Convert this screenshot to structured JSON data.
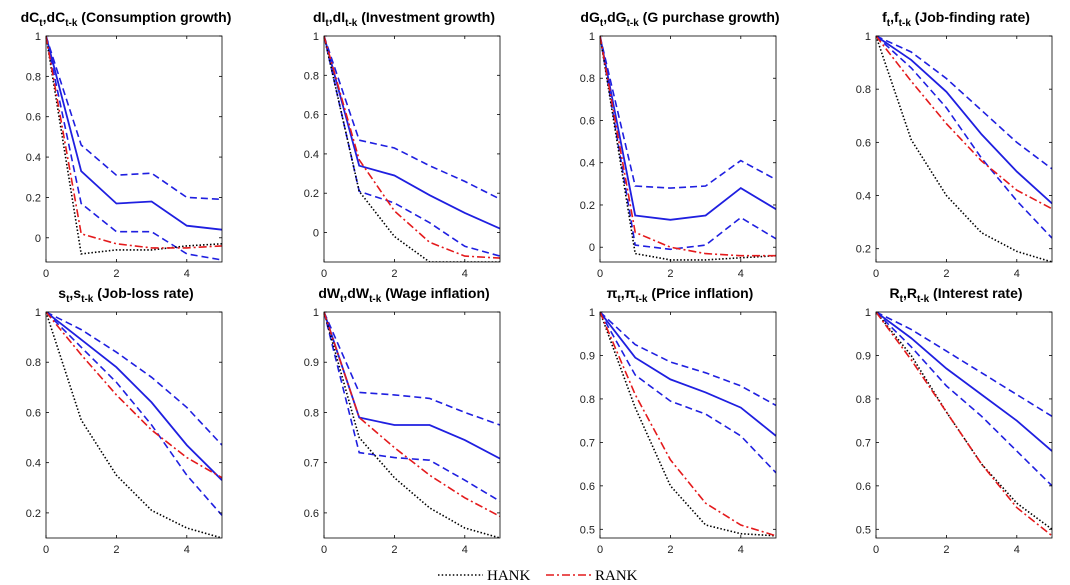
{
  "legend": [
    {
      "name": "HANK",
      "color": "#000000",
      "dash": "dot"
    },
    {
      "name": "RANK",
      "color": "#e41a1c",
      "dash": "dashdot"
    }
  ],
  "colors": {
    "band": "#1f1fe0",
    "hank": "#000000",
    "rank": "#e41a1c"
  },
  "chart_data": [
    {
      "type": "line",
      "title_main": "dC",
      "title_sub1": "t",
      "title_mid": ",dC",
      "title_sub2": "t-k",
      "title_rest": " (Consumption growth)",
      "x": [
        0,
        1,
        2,
        3,
        4,
        5
      ],
      "xlim": [
        0,
        5
      ],
      "ylim": [
        -0.12,
        1
      ],
      "xticks": [
        0,
        2,
        4
      ],
      "yticks": [
        0,
        0.2,
        0.4,
        0.6,
        0.8,
        1
      ],
      "series": [
        {
          "role": "mid",
          "values": [
            1,
            0.33,
            0.17,
            0.18,
            0.06,
            0.04
          ]
        },
        {
          "role": "upper",
          "values": [
            1,
            0.46,
            0.31,
            0.32,
            0.2,
            0.19
          ]
        },
        {
          "role": "lower",
          "values": [
            1,
            0.17,
            0.03,
            0.03,
            -0.08,
            -0.11
          ]
        },
        {
          "name": "HANK",
          "values": [
            1,
            -0.08,
            -0.06,
            -0.06,
            -0.04,
            -0.03
          ]
        },
        {
          "name": "RANK",
          "values": [
            1,
            0.02,
            -0.03,
            -0.05,
            -0.05,
            -0.04
          ]
        }
      ]
    },
    {
      "type": "line",
      "title_main": "dI",
      "title_sub1": "t",
      "title_mid": ",dI",
      "title_sub2": "t-k",
      "title_rest": " (Investment growth)",
      "x": [
        0,
        1,
        2,
        3,
        4,
        5
      ],
      "xlim": [
        0,
        5
      ],
      "ylim": [
        -0.15,
        1
      ],
      "xticks": [
        0,
        2,
        4
      ],
      "yticks": [
        0,
        0.2,
        0.4,
        0.6,
        0.8,
        1
      ],
      "series": [
        {
          "role": "mid",
          "values": [
            1,
            0.34,
            0.29,
            0.19,
            0.1,
            0.02
          ]
        },
        {
          "role": "upper",
          "values": [
            1,
            0.47,
            0.43,
            0.34,
            0.26,
            0.17
          ]
        },
        {
          "role": "lower",
          "values": [
            1,
            0.21,
            0.15,
            0.05,
            -0.07,
            -0.12
          ]
        },
        {
          "name": "HANK",
          "values": [
            1,
            0.21,
            -0.02,
            -0.15,
            -0.15,
            -0.15
          ]
        },
        {
          "name": "RANK",
          "values": [
            1,
            0.37,
            0.11,
            -0.05,
            -0.12,
            -0.13
          ]
        }
      ]
    },
    {
      "type": "line",
      "title_main": "dG",
      "title_sub1": "t",
      "title_mid": ",dG",
      "title_sub2": "t-k",
      "title_rest": " (G purchase growth)",
      "x": [
        0,
        1,
        2,
        3,
        4,
        5
      ],
      "xlim": [
        0,
        5
      ],
      "ylim": [
        -0.07,
        1
      ],
      "xticks": [
        0,
        2,
        4
      ],
      "yticks": [
        0,
        0.2,
        0.4,
        0.6,
        0.8,
        1
      ],
      "series": [
        {
          "role": "mid",
          "values": [
            1,
            0.15,
            0.13,
            0.15,
            0.28,
            0.18
          ]
        },
        {
          "role": "upper",
          "values": [
            1,
            0.29,
            0.28,
            0.29,
            0.41,
            0.32
          ]
        },
        {
          "role": "lower",
          "values": [
            1,
            0.01,
            -0.01,
            0.01,
            0.14,
            0.04
          ]
        },
        {
          "name": "HANK",
          "values": [
            1,
            -0.03,
            -0.06,
            -0.06,
            -0.05,
            -0.04
          ]
        },
        {
          "name": "RANK",
          "values": [
            1,
            0.07,
            0.0,
            -0.03,
            -0.04,
            -0.04
          ]
        }
      ]
    },
    {
      "type": "line",
      "title_main": "f",
      "title_sub1": "t",
      "title_mid": ",f",
      "title_sub2": "t-k",
      "title_rest": " (Job-finding rate)",
      "x": [
        0,
        1,
        2,
        3,
        4,
        5
      ],
      "xlim": [
        0,
        5
      ],
      "ylim": [
        0.15,
        1
      ],
      "xticks": [
        0,
        2,
        4
      ],
      "yticks": [
        0.2,
        0.4,
        0.6,
        0.8,
        1
      ],
      "series": [
        {
          "role": "mid",
          "values": [
            1,
            0.91,
            0.79,
            0.63,
            0.49,
            0.37
          ]
        },
        {
          "role": "upper",
          "values": [
            1,
            0.94,
            0.84,
            0.72,
            0.6,
            0.5
          ]
        },
        {
          "role": "lower",
          "values": [
            1,
            0.88,
            0.73,
            0.54,
            0.38,
            0.24
          ]
        },
        {
          "name": "HANK",
          "values": [
            1,
            0.61,
            0.4,
            0.26,
            0.19,
            0.15
          ]
        },
        {
          "name": "RANK",
          "values": [
            1,
            0.83,
            0.67,
            0.53,
            0.42,
            0.35
          ]
        }
      ]
    },
    {
      "type": "line",
      "title_main": "s",
      "title_sub1": "t",
      "title_mid": ",s",
      "title_sub2": "t-k",
      "title_rest": " (Job-loss rate)",
      "x": [
        0,
        1,
        2,
        3,
        4,
        5
      ],
      "xlim": [
        0,
        5
      ],
      "ylim": [
        0.1,
        1
      ],
      "xticks": [
        0,
        2,
        4
      ],
      "yticks": [
        0.2,
        0.4,
        0.6,
        0.8,
        1
      ],
      "series": [
        {
          "role": "mid",
          "values": [
            1,
            0.89,
            0.78,
            0.64,
            0.47,
            0.33
          ]
        },
        {
          "role": "upper",
          "values": [
            1,
            0.93,
            0.84,
            0.74,
            0.62,
            0.47
          ]
        },
        {
          "role": "lower",
          "values": [
            1,
            0.86,
            0.72,
            0.55,
            0.35,
            0.19
          ]
        },
        {
          "name": "HANK",
          "values": [
            1,
            0.57,
            0.35,
            0.21,
            0.14,
            0.1
          ]
        },
        {
          "name": "RANK",
          "values": [
            1,
            0.83,
            0.67,
            0.53,
            0.42,
            0.34
          ]
        }
      ]
    },
    {
      "type": "line",
      "title_main": "dW",
      "title_sub1": "t",
      "title_mid": ",dW",
      "title_sub2": "t-k",
      "title_rest": " (Wage inflation)",
      "x": [
        0,
        1,
        2,
        3,
        4,
        5
      ],
      "xlim": [
        0,
        5
      ],
      "ylim": [
        0.55,
        1
      ],
      "xticks": [
        0,
        2,
        4
      ],
      "yticks": [
        0.6,
        0.7,
        0.8,
        0.9,
        1
      ],
      "series": [
        {
          "role": "mid",
          "values": [
            1,
            0.79,
            0.775,
            0.775,
            0.745,
            0.708
          ]
        },
        {
          "role": "upper",
          "values": [
            1,
            0.84,
            0.835,
            0.828,
            0.8,
            0.775
          ]
        },
        {
          "role": "lower",
          "values": [
            1,
            0.72,
            0.71,
            0.705,
            0.665,
            0.623
          ]
        },
        {
          "name": "HANK",
          "values": [
            1,
            0.75,
            0.67,
            0.61,
            0.57,
            0.55
          ]
        },
        {
          "name": "RANK",
          "values": [
            1,
            0.79,
            0.73,
            0.675,
            0.63,
            0.593
          ]
        }
      ]
    },
    {
      "type": "line",
      "title_main": "π",
      "title_sub1": "t",
      "title_mid": ",π",
      "title_sub2": "t-k",
      "title_rest": " (Price inflation)",
      "x": [
        0,
        1,
        2,
        3,
        4,
        5
      ],
      "xlim": [
        0,
        5
      ],
      "ylim": [
        0.48,
        1
      ],
      "xticks": [
        0,
        2,
        4
      ],
      "yticks": [
        0.5,
        0.6,
        0.7,
        0.8,
        0.9,
        1
      ],
      "series": [
        {
          "role": "mid",
          "values": [
            1,
            0.895,
            0.845,
            0.815,
            0.78,
            0.715
          ]
        },
        {
          "role": "upper",
          "values": [
            1,
            0.925,
            0.885,
            0.86,
            0.83,
            0.785
          ]
        },
        {
          "role": "lower",
          "values": [
            1,
            0.855,
            0.795,
            0.765,
            0.715,
            0.63
          ]
        },
        {
          "name": "HANK",
          "values": [
            1,
            0.78,
            0.6,
            0.51,
            0.49,
            0.485
          ]
        },
        {
          "name": "RANK",
          "values": [
            1,
            0.81,
            0.66,
            0.56,
            0.51,
            0.485
          ]
        }
      ]
    },
    {
      "type": "line",
      "title_main": "R",
      "title_sub1": "t",
      "title_mid": ",R",
      "title_sub2": "t-k",
      "title_rest": " (Interest rate)",
      "x": [
        0,
        1,
        2,
        3,
        4,
        5
      ],
      "xlim": [
        0,
        5
      ],
      "ylim": [
        0.48,
        1
      ],
      "xticks": [
        0,
        2,
        4
      ],
      "yticks": [
        0.5,
        0.6,
        0.7,
        0.8,
        0.9,
        1
      ],
      "series": [
        {
          "role": "mid",
          "values": [
            1,
            0.94,
            0.87,
            0.81,
            0.75,
            0.68
          ]
        },
        {
          "role": "upper",
          "values": [
            1,
            0.96,
            0.91,
            0.86,
            0.81,
            0.76
          ]
        },
        {
          "role": "lower",
          "values": [
            1,
            0.92,
            0.83,
            0.76,
            0.68,
            0.6
          ]
        },
        {
          "name": "HANK",
          "values": [
            1,
            0.9,
            0.77,
            0.65,
            0.56,
            0.5
          ]
        },
        {
          "name": "RANK",
          "values": [
            1,
            0.89,
            0.77,
            0.65,
            0.55,
            0.485
          ]
        }
      ]
    }
  ]
}
